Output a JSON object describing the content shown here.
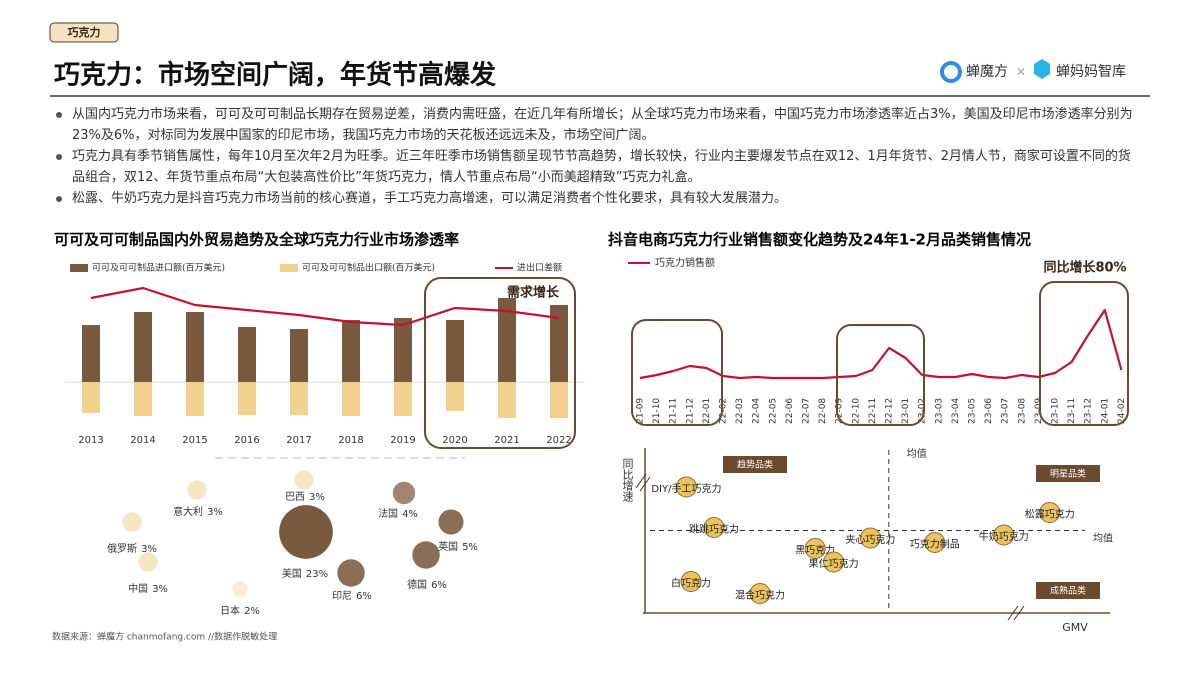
{
  "header": {
    "tag": "巧克力",
    "title": "巧克力：市场空间广阔，年货节高爆发",
    "logo_1": "蝉魔方",
    "logo_sep": "×",
    "logo_2": "蝉妈妈智库"
  },
  "bullets": [
    "从国内巧克力市场来看，可可及可可制品长期存在贸易逆差，消费内需旺盛，在近几年有所增长；从全球巧克力市场来看，中国巧克力市场渗透率近占3%，美国及印尼市场渗透率分别为23%及6%，对标同为发展中国家的印尼市场，我国巧克力市场的天花板还远远未及，市场空间广阔。",
    "巧克力具有季节销售属性，每年10月至次年2月为旺季。近三年旺季市场销售额呈现节节高趋势，增长较快，行业内主要爆发节点在双12、1月年货节、2月情人节，商家可设置不同的货品组合，双12、年货节重点布局“大包装高性价比”年货巧克力，情人节重点布局“小而美超精致”巧克力礼盒。",
    "松露、牛奶巧克力是抖音巧克力市场当前的核心赛道，手工巧克力高增速，可以满足消费者个性化要求，具有较大发展潜力。"
  ],
  "chart_data": [
    {
      "type": "bar",
      "title": "可可及可可制品国内外贸易趋势及全球巧克力行业市场渗透率",
      "categories": [
        "2013",
        "2014",
        "2015",
        "2016",
        "2017",
        "2018",
        "2019",
        "2020",
        "2021",
        "2022"
      ],
      "series": [
        {
          "name": "可可及可可制品进口额(百万美元)",
          "color": "#7a5a3f",
          "values": [
            57,
            70,
            70,
            55,
            53,
            62,
            64,
            62,
            84,
            77
          ]
        },
        {
          "name": "可可及可可制品出口额(百万美元)",
          "color": "#f2d28e",
          "values": [
            -31,
            -34,
            -34,
            -33,
            -33,
            -34,
            -34,
            -29,
            -36,
            -36
          ]
        },
        {
          "name": "进出口差额",
          "color": "#c8102e",
          "type": "line",
          "values": [
            84,
            94,
            77,
            72,
            67,
            60,
            57,
            74,
            71,
            64
          ]
        }
      ],
      "ylim": [
        -60,
        110
      ],
      "annotation": "需求增长"
    },
    {
      "type": "line",
      "title": "抖音电商巧克力行业销售额变化趋势及24年1-2月品类销售情况",
      "categories": [
        "21-09",
        "21-10",
        "21-11",
        "21-12",
        "22-01",
        "22-02",
        "22-03",
        "22-04",
        "22-05",
        "22-06",
        "22-07",
        "22-08",
        "22-09",
        "22-10",
        "22-11",
        "22-12",
        "23-01",
        "23-02",
        "23-03",
        "23-04",
        "23-05",
        "23-06",
        "23-07",
        "23-08",
        "23-09",
        "23-10",
        "23-11",
        "23-12",
        "24-01",
        "24-02"
      ],
      "series": [
        {
          "name": "巧克力销售额",
          "color": "#c8102e",
          "values": [
            7,
            10,
            14,
            19,
            17,
            9,
            7,
            8,
            7,
            7,
            7,
            7,
            8,
            9,
            15,
            37,
            27,
            10,
            8,
            8,
            11,
            8,
            7,
            10,
            8,
            12,
            23,
            50,
            75,
            15
          ]
        }
      ],
      "ylim": [
        0,
        85
      ],
      "annotation": "同比增长80%"
    },
    {
      "type": "bubble",
      "categories": [
        "意大利",
        "巴西",
        "法国",
        "俄罗斯",
        "英国",
        "中国",
        "美国",
        "德国",
        "印尼",
        "日本"
      ],
      "values": [
        3,
        3,
        4,
        3,
        5,
        3,
        23,
        6,
        6,
        2
      ],
      "value_labels": [
        "3%",
        "3%",
        "4%",
        "3%",
        "5%",
        "3%",
        "23%",
        "6%",
        "6%",
        "2%"
      ],
      "colors": [
        "#f6e6c4",
        "#f6e6c4",
        "#a08670",
        "#f6e6c4",
        "#8a6e56",
        "#f6e6c4",
        "#7a5a3f",
        "#8a6e56",
        "#8a6e56",
        "#f9ecd6"
      ]
    },
    {
      "type": "scatter",
      "xlabel": "GMV",
      "ylabel": "同比增速",
      "labels": [
        "DIY/手工巧克力",
        "跳跳巧克力",
        "夹心巧克力",
        "巧克力制品",
        "牛奶巧克力",
        "松露巧克力",
        "黑巧克力",
        "果仁巧克力",
        "白巧克力",
        "混合巧克力"
      ],
      "x": [
        9,
        15,
        49,
        63,
        78,
        88,
        37,
        41,
        10,
        25
      ],
      "y": [
        82,
        55,
        48,
        45,
        50,
        65,
        41,
        32,
        19,
        11
      ],
      "xlim": [
        0,
        100
      ],
      "ylim": [
        0,
        100
      ],
      "x_mean": 53,
      "y_mean": 53,
      "mean_label": "均值",
      "quadrants": [
        "趋势品类",
        "明星品类",
        "成熟品类"
      ],
      "color": "#ecc45e"
    }
  ],
  "source": "数据来源：蝉魔方 chanmofang.com //数据作脱敏处理"
}
